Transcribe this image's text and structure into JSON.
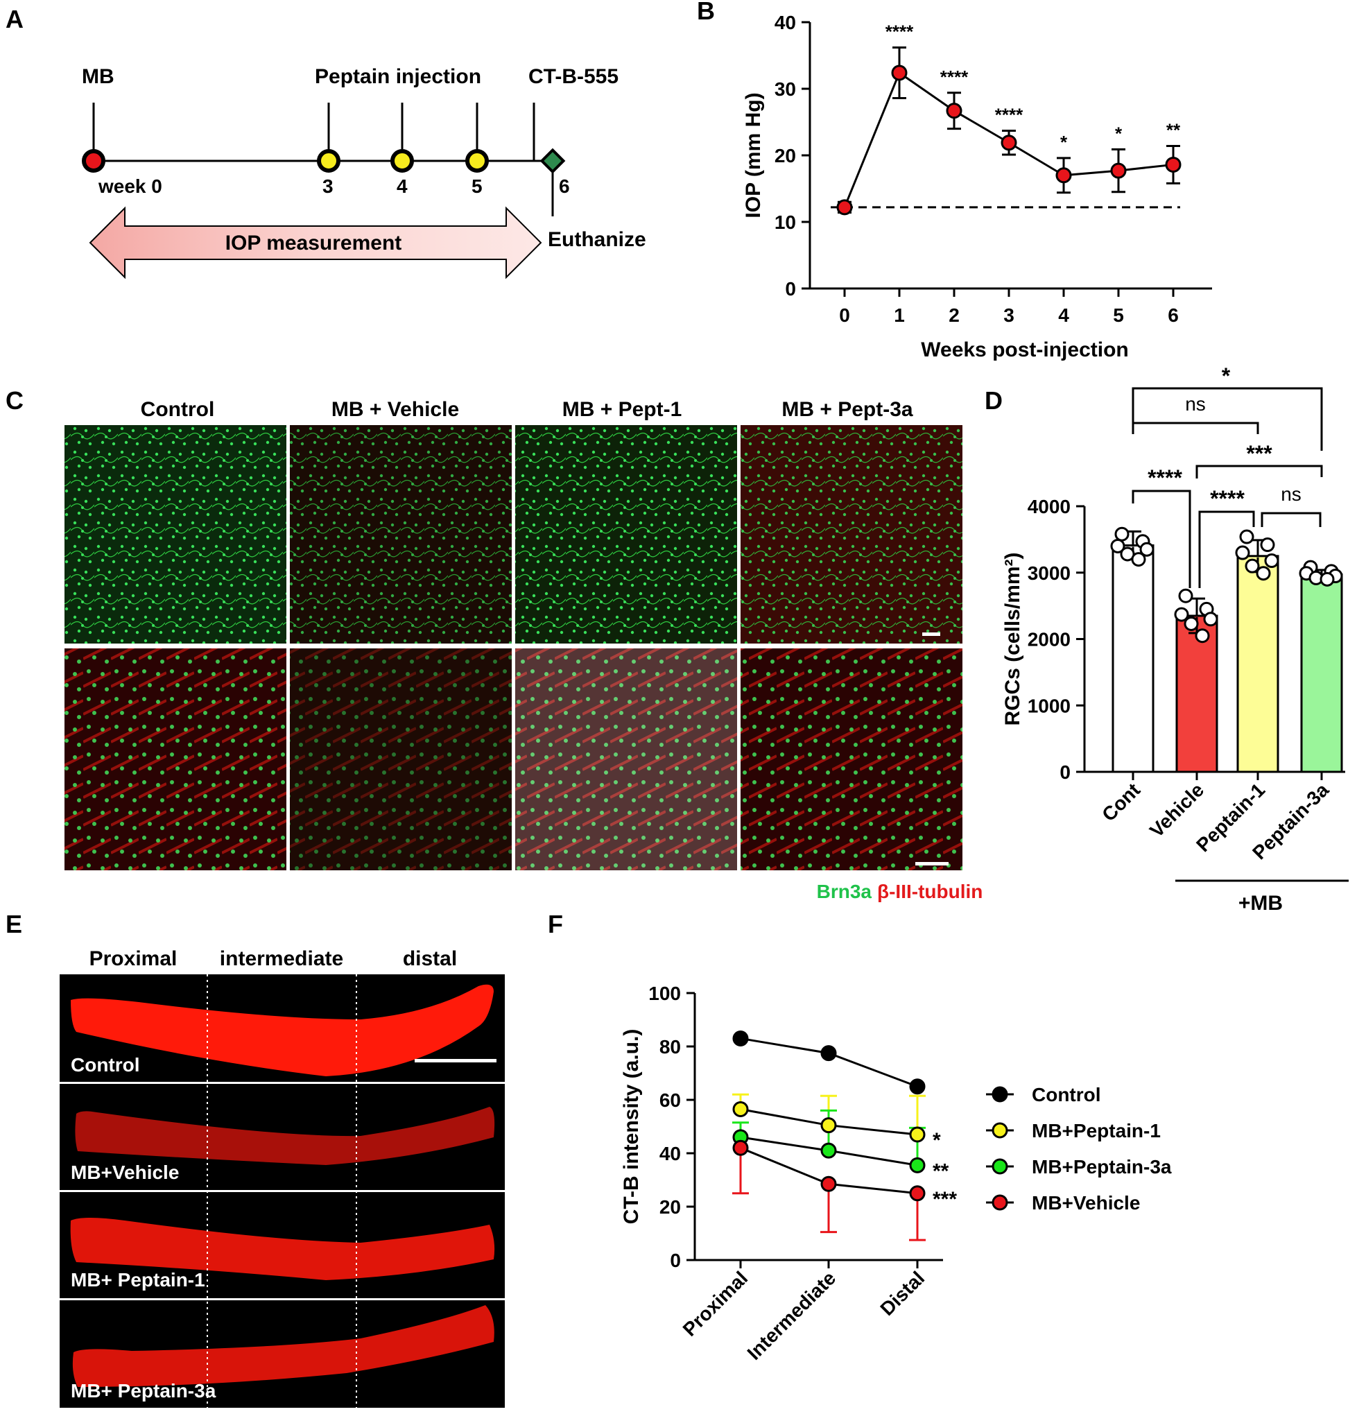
{
  "panels": {
    "A": {
      "letter": "A",
      "events": {
        "mb": "MB",
        "peptain": "Peptain injection",
        "ctb": "CT-B-555",
        "euthanize": "Euthanize"
      },
      "week_labels": [
        "week 0",
        "3",
        "4",
        "5",
        "6"
      ],
      "iop_bar_label": "IOP measurement",
      "colors": {
        "mb": "#e8151b",
        "injection": "#f7ec1e",
        "ctb": "#2e8a4e",
        "iop_arrow_start": "#f4a8a4",
        "iop_arrow_end": "#fde8e6"
      }
    },
    "B": {
      "letter": "B"
    },
    "C": {
      "letter": "C",
      "column_titles": [
        "Control",
        "MB + Vehicle",
        "MB + Pept-1",
        "MB + Pept-3a"
      ],
      "legend_green": "Brn3a",
      "legend_red": "β-III-tubulin",
      "colors": {
        "green": "#1fc24a",
        "red": "#e31a1c"
      }
    },
    "D": {
      "letter": "D",
      "group_label": "+MB",
      "significance": [
        {
          "text": "*"
        },
        {
          "text": "ns"
        },
        {
          "text": "***"
        },
        {
          "text": "****"
        },
        {
          "text": "****"
        },
        {
          "text": "ns"
        }
      ]
    },
    "E": {
      "letter": "E",
      "segment_labels": [
        "Proximal",
        "intermediate",
        "distal"
      ],
      "row_labels": [
        "Control",
        "MB+Vehicle",
        "MB+ Peptain-1",
        "MB+ Peptain-3a"
      ],
      "colors": {
        "nerve": "#ff1a0a",
        "background": "#000000"
      }
    },
    "F": {
      "letter": "F"
    }
  },
  "chart_data": [
    {
      "panel": "B",
      "type": "line",
      "x": [
        0,
        1,
        2,
        3,
        4,
        5,
        6
      ],
      "xticklabels": [
        "0",
        "1",
        "2",
        "3",
        "4",
        "5",
        "6"
      ],
      "series": [
        {
          "values": [
            12.2,
            32.4,
            26.7,
            21.9,
            17.0,
            17.7,
            18.6
          ],
          "error": [
            0.8,
            3.8,
            2.7,
            1.8,
            2.6,
            3.2,
            2.8
          ],
          "color": "#e8151b"
        }
      ],
      "reference_line": 12.2,
      "significance": [
        "",
        "****",
        "****",
        "****",
        "*",
        "*",
        "**"
      ],
      "xlabel": "Weeks post-injection",
      "ylabel": "IOP (mm Hg)",
      "ylim": [
        0,
        40
      ],
      "yticks": [
        0,
        10,
        20,
        30,
        40
      ]
    },
    {
      "panel": "D",
      "type": "bar",
      "categories": [
        "Cont",
        "Vehicle",
        "Peptain-1",
        "Peptain-3a"
      ],
      "values": [
        3410,
        2350,
        3250,
        2970
      ],
      "error": [
        210,
        260,
        240,
        70
      ],
      "points": [
        [
          3580,
          3470,
          3400,
          3350,
          3280,
          3200
        ],
        [
          2650,
          2450,
          2370,
          2300,
          2230,
          2050
        ],
        [
          3540,
          3420,
          3300,
          3180,
          3100,
          2990
        ],
        [
          3080,
          3020,
          2990,
          2950,
          2920,
          2900
        ]
      ],
      "colors": [
        "#ffffff",
        "#f2403c",
        "#fdfd96",
        "#9af59a"
      ],
      "ylabel": "RGCs (cells/mm²)",
      "ylim": [
        0,
        4000
      ],
      "yticks": [
        0,
        1000,
        2000,
        3000,
        4000
      ]
    },
    {
      "panel": "F",
      "type": "line",
      "categories": [
        "Proximal",
        "Intermediate",
        "Distal"
      ],
      "series": [
        {
          "name": "Control",
          "values": [
            83,
            77.5,
            65
          ],
          "error": [
            0,
            0,
            0
          ],
          "color": "#000000"
        },
        {
          "name": "MB+Peptain-1",
          "values": [
            56.5,
            50.5,
            47
          ],
          "error": [
            5.5,
            11,
            14.5
          ],
          "color": "#f7f21b"
        },
        {
          "name": "MB+Peptain-3a",
          "values": [
            46,
            41,
            35.5
          ],
          "error": [
            5.5,
            15,
            14
          ],
          "color": "#19e619"
        },
        {
          "name": "MB+Vehicle",
          "values": [
            42,
            28.5,
            25
          ],
          "error": [
            17,
            18,
            17.5
          ],
          "color": "#e8151b"
        }
      ],
      "significance": [
        "",
        "*",
        "**",
        "***"
      ],
      "ylabel": "CT-B intensity (a.u.)",
      "ylim": [
        0,
        100
      ],
      "yticks": [
        0,
        20,
        40,
        60,
        80,
        100
      ],
      "legend_position": "right"
    }
  ]
}
